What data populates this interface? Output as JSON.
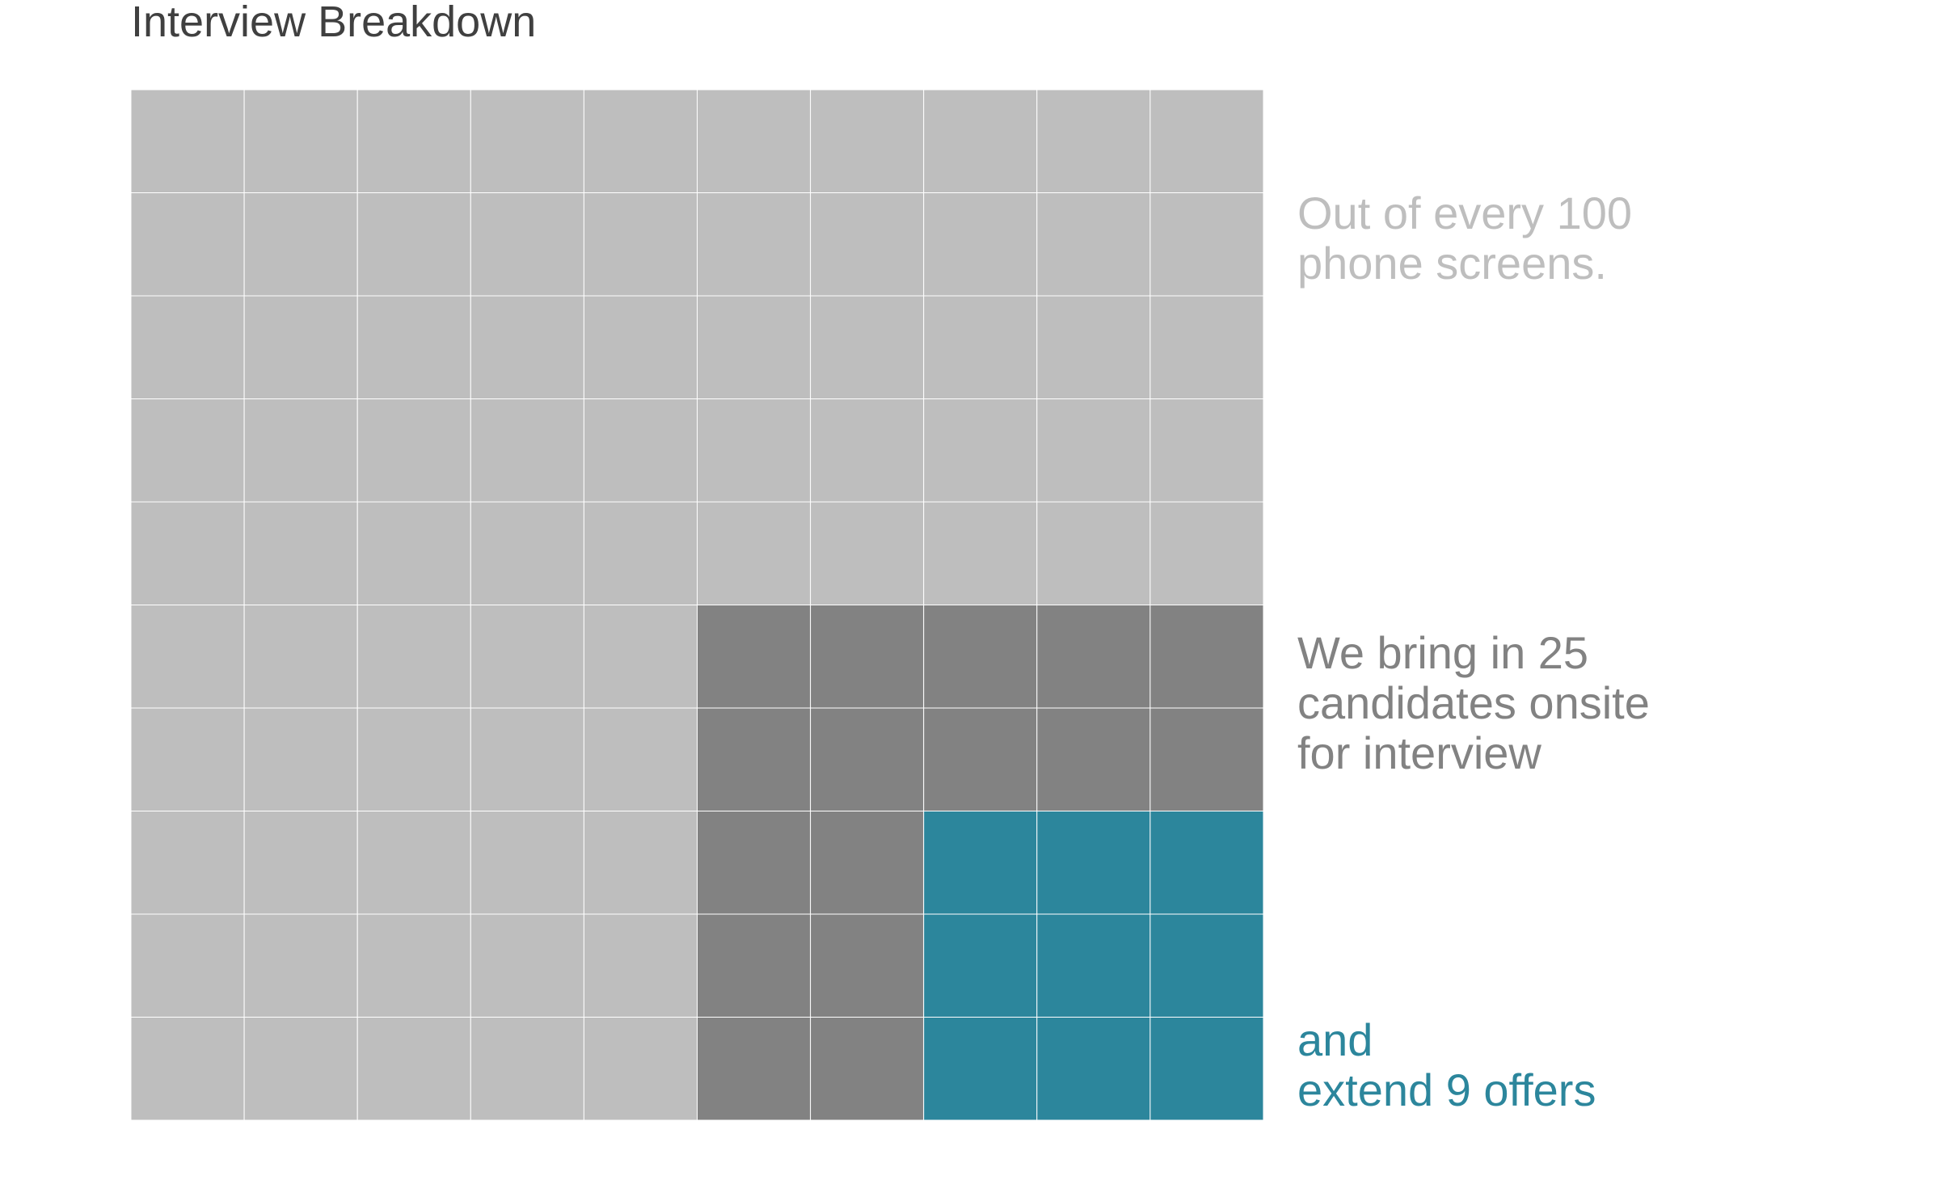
{
  "colors": {
    "phone_screens": "#bebebe",
    "onsite": "#828282",
    "offers": "#2c869c",
    "title": "#404040",
    "grid_line": "#ffffff"
  },
  "chart_data": {
    "type": "waffle",
    "title": "Interview Breakdown",
    "grid": {
      "columns": 10,
      "rows": 10
    },
    "total": 100,
    "series": [
      {
        "name": "phone screens",
        "value": 100,
        "color": "#bebebe"
      },
      {
        "name": "onsite",
        "value": 25,
        "color": "#828282"
      },
      {
        "name": "offers",
        "value": 9,
        "color": "#2c869c"
      }
    ],
    "annotations": [
      {
        "text": "Out of every 100\nphone screens.",
        "color": "#bebebe"
      },
      {
        "text": "We bring in 25\ncandidates onsite\nfor interview",
        "color": "#828282"
      },
      {
        "text": "and\nextend 9 offers",
        "color": "#2c869c"
      }
    ]
  }
}
